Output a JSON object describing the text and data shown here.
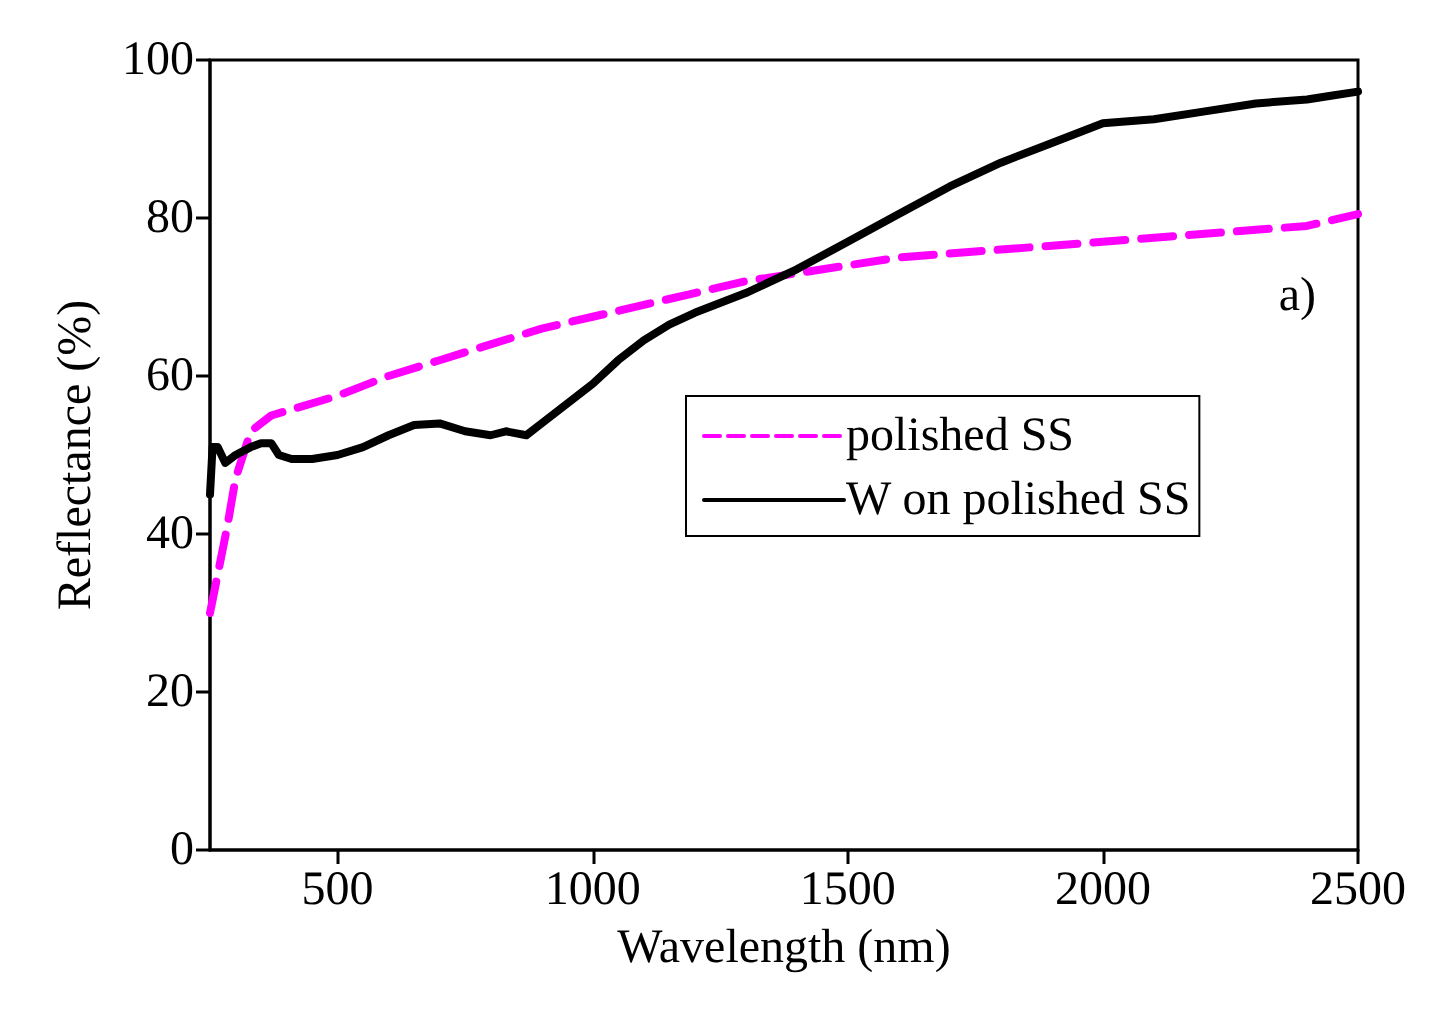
{
  "chart_data": {
    "type": "line",
    "xlabel": "Wavelength (nm)",
    "ylabel": "Reflectance (%)",
    "xlim": [
      250,
      2500
    ],
    "xticks": [
      500,
      1000,
      1500,
      2000,
      2500
    ],
    "ylim": [
      0,
      100
    ],
    "yticks": [
      0,
      20,
      40,
      60,
      80,
      100
    ],
    "grid": false,
    "legend": "right",
    "marker": "none",
    "annotations": [
      "a)"
    ],
    "series": [
      {
        "name": "polished SS",
        "color": "#ff00ff",
        "line_style": "dashed",
        "x": [
          250,
          284,
          300,
          330,
          370,
          500,
          600,
          700,
          800,
          900,
          1000,
          1100,
          1200,
          1300,
          1400,
          1500,
          1600,
          1800,
          2000,
          2200,
          2400,
          2500
        ],
        "values": [
          30,
          41,
          47,
          53,
          55,
          57.5,
          60,
          62,
          64,
          66,
          67.5,
          69,
          70.5,
          72,
          73,
          74,
          75,
          76,
          77,
          78,
          79,
          80.5
        ]
      },
      {
        "name": "W on polished SS",
        "color": "#000000",
        "line_style": "solid",
        "x": [
          250,
          255,
          265,
          280,
          300,
          330,
          350,
          370,
          385,
          410,
          450,
          500,
          550,
          600,
          650,
          700,
          750,
          800,
          830,
          870,
          900,
          950,
          1000,
          1050,
          1100,
          1150,
          1200,
          1300,
          1400,
          1500,
          1600,
          1700,
          1800,
          1900,
          2000,
          2100,
          2200,
          2300,
          2400,
          2450,
          2500
        ],
        "values": [
          45,
          51,
          51,
          49,
          50,
          51,
          51.5,
          51.5,
          50,
          49.5,
          49.5,
          50,
          51,
          52.5,
          53.8,
          54,
          53,
          52.5,
          53,
          52.5,
          54,
          56.5,
          59,
          62,
          64.5,
          66.5,
          68,
          70.5,
          73.5,
          77,
          80.5,
          84,
          87,
          89.5,
          92,
          92.5,
          93.5,
          94.5,
          95,
          95.5,
          96
        ]
      }
    ]
  }
}
